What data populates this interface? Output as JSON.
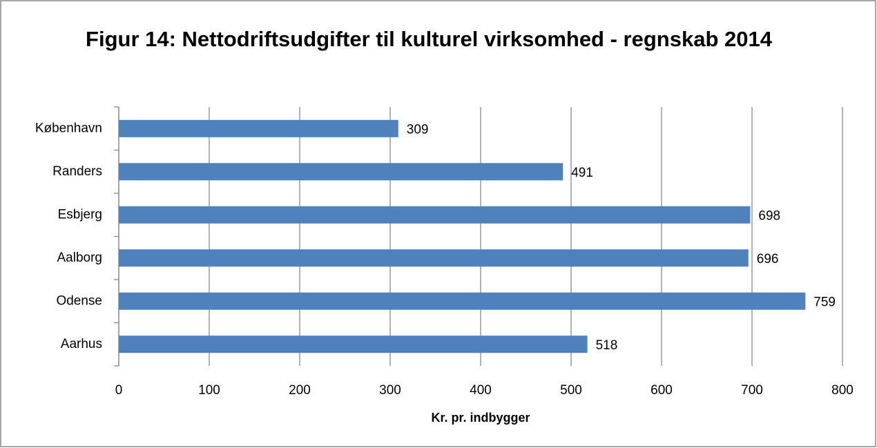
{
  "chart_data": {
    "type": "bar",
    "orientation": "horizontal",
    "title": "Figur 14: Nettodriftsudgifter til kulturel virksomhed - regnskab 2014",
    "xlabel": "Kr. pr. indbygger",
    "categories": [
      "København",
      "Randers",
      "Esbjerg",
      "Aalborg",
      "Odense",
      "Aarhus"
    ],
    "values": [
      309,
      491,
      698,
      696,
      759,
      518
    ],
    "color": "#4f81bd",
    "xlim": [
      0,
      800
    ],
    "xticks": [
      0,
      100,
      200,
      300,
      400,
      500,
      600,
      700,
      800
    ],
    "grid": true
  }
}
